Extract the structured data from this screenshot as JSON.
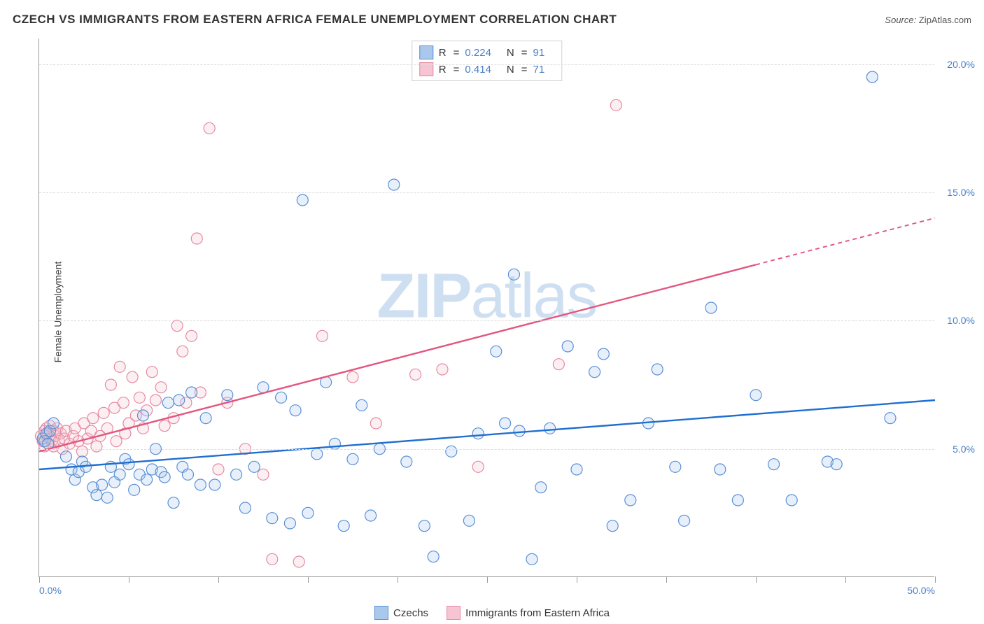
{
  "title": "CZECH VS IMMIGRANTS FROM EASTERN AFRICA FEMALE UNEMPLOYMENT CORRELATION CHART",
  "source_label": "Source:",
  "source_value": "ZipAtlas.com",
  "watermark": {
    "bold": "ZIP",
    "rest": "atlas"
  },
  "y_axis_label": "Female Unemployment",
  "chart": {
    "type": "scatter",
    "xlim": [
      0,
      50
    ],
    "ylim": [
      0,
      21
    ],
    "x_ticks": [
      0,
      5,
      10,
      15,
      20,
      25,
      30,
      35,
      40,
      45,
      50
    ],
    "x_tick_labels": {
      "0": "0.0%",
      "50": "50.0%"
    },
    "y_ticks": [
      5,
      10,
      15,
      20
    ],
    "y_tick_labels": [
      "5.0%",
      "10.0%",
      "15.0%",
      "20.0%"
    ],
    "grid_color": "#dddddd",
    "axis_color": "#999999",
    "background_color": "#ffffff",
    "marker_radius": 8,
    "marker_stroke_width": 1.2,
    "marker_fill_opacity": 0.28,
    "line_width": 2.4,
    "series": [
      {
        "key": "czechs",
        "label": "Czechs",
        "color_stroke": "#5a8fd6",
        "color_fill": "#a9c8ec",
        "line_color": "#1f6fd0",
        "r": 0.224,
        "n": 91,
        "trend": {
          "x1": 0,
          "y1": 4.2,
          "x2": 50,
          "y2": 6.9
        },
        "points": [
          [
            0.2,
            5.4
          ],
          [
            0.3,
            5.3
          ],
          [
            0.4,
            5.6
          ],
          [
            0.5,
            5.2
          ],
          [
            0.6,
            5.7
          ],
          [
            0.8,
            6.0
          ],
          [
            1.5,
            4.7
          ],
          [
            1.8,
            4.2
          ],
          [
            2.0,
            3.8
          ],
          [
            2.2,
            4.1
          ],
          [
            2.4,
            4.5
          ],
          [
            2.6,
            4.3
          ],
          [
            3.0,
            3.5
          ],
          [
            3.2,
            3.2
          ],
          [
            3.5,
            3.6
          ],
          [
            3.8,
            3.1
          ],
          [
            4.0,
            4.3
          ],
          [
            4.2,
            3.7
          ],
          [
            4.5,
            4.0
          ],
          [
            4.8,
            4.6
          ],
          [
            5.0,
            4.4
          ],
          [
            5.3,
            3.4
          ],
          [
            5.6,
            4.0
          ],
          [
            5.8,
            6.3
          ],
          [
            6.0,
            3.8
          ],
          [
            6.3,
            4.2
          ],
          [
            6.5,
            5.0
          ],
          [
            6.8,
            4.1
          ],
          [
            7.0,
            3.9
          ],
          [
            7.2,
            6.8
          ],
          [
            7.5,
            2.9
          ],
          [
            7.8,
            6.9
          ],
          [
            8.0,
            4.3
          ],
          [
            8.3,
            4.0
          ],
          [
            8.5,
            7.2
          ],
          [
            9.0,
            3.6
          ],
          [
            9.3,
            6.2
          ],
          [
            9.8,
            3.6
          ],
          [
            10.5,
            7.1
          ],
          [
            11.0,
            4.0
          ],
          [
            11.5,
            2.7
          ],
          [
            12.0,
            4.3
          ],
          [
            12.5,
            7.4
          ],
          [
            13.0,
            2.3
          ],
          [
            13.5,
            7.0
          ],
          [
            14.0,
            2.1
          ],
          [
            14.3,
            6.5
          ],
          [
            14.7,
            14.7
          ],
          [
            15.0,
            2.5
          ],
          [
            15.5,
            4.8
          ],
          [
            16.0,
            7.6
          ],
          [
            16.5,
            5.2
          ],
          [
            17.0,
            2.0
          ],
          [
            17.5,
            4.6
          ],
          [
            18.0,
            6.7
          ],
          [
            18.5,
            2.4
          ],
          [
            19.0,
            5.0
          ],
          [
            19.8,
            15.3
          ],
          [
            20.5,
            4.5
          ],
          [
            21.5,
            2.0
          ],
          [
            22.0,
            0.8
          ],
          [
            23.0,
            4.9
          ],
          [
            24.0,
            2.2
          ],
          [
            24.5,
            5.6
          ],
          [
            25.5,
            8.8
          ],
          [
            26.0,
            6.0
          ],
          [
            26.5,
            11.8
          ],
          [
            26.8,
            5.7
          ],
          [
            27.5,
            0.7
          ],
          [
            28.0,
            3.5
          ],
          [
            28.5,
            5.8
          ],
          [
            29.5,
            9.0
          ],
          [
            30.0,
            4.2
          ],
          [
            31.0,
            8.0
          ],
          [
            31.5,
            8.7
          ],
          [
            32.0,
            2.0
          ],
          [
            33.0,
            3.0
          ],
          [
            34.0,
            6.0
          ],
          [
            34.5,
            8.1
          ],
          [
            35.5,
            4.3
          ],
          [
            36.0,
            2.2
          ],
          [
            37.5,
            10.5
          ],
          [
            38.0,
            4.2
          ],
          [
            39.0,
            3.0
          ],
          [
            40.0,
            7.1
          ],
          [
            41.0,
            4.4
          ],
          [
            42.0,
            3.0
          ],
          [
            44.0,
            4.5
          ],
          [
            44.5,
            4.4
          ],
          [
            46.5,
            19.5
          ],
          [
            47.5,
            6.2
          ]
        ]
      },
      {
        "key": "immigrants",
        "label": "Immigrants from Eastern Africa",
        "color_stroke": "#e68aa3",
        "color_fill": "#f6c4d2",
        "line_color": "#e2567f",
        "r": 0.414,
        "n": 71,
        "trend": {
          "x1": 0,
          "y1": 4.9,
          "x2": 50,
          "y2": 14.0
        },
        "trend_solid_until_x": 40,
        "points": [
          [
            0.1,
            5.5
          ],
          [
            0.2,
            5.3
          ],
          [
            0.3,
            5.7
          ],
          [
            0.3,
            5.1
          ],
          [
            0.4,
            5.5
          ],
          [
            0.4,
            5.8
          ],
          [
            0.5,
            5.2
          ],
          [
            0.5,
            5.6
          ],
          [
            0.6,
            5.4
          ],
          [
            0.6,
            5.9
          ],
          [
            0.7,
            5.3
          ],
          [
            0.8,
            5.7
          ],
          [
            0.8,
            5.1
          ],
          [
            0.9,
            5.5
          ],
          [
            1.0,
            5.8
          ],
          [
            1.1,
            5.3
          ],
          [
            1.2,
            5.6
          ],
          [
            1.3,
            5.0
          ],
          [
            1.4,
            5.4
          ],
          [
            1.5,
            5.7
          ],
          [
            1.7,
            5.2
          ],
          [
            1.9,
            5.5
          ],
          [
            2.0,
            5.8
          ],
          [
            2.2,
            5.3
          ],
          [
            2.4,
            4.9
          ],
          [
            2.5,
            6.0
          ],
          [
            2.7,
            5.4
          ],
          [
            2.9,
            5.7
          ],
          [
            3.0,
            6.2
          ],
          [
            3.2,
            5.1
          ],
          [
            3.4,
            5.5
          ],
          [
            3.6,
            6.4
          ],
          [
            3.8,
            5.8
          ],
          [
            4.0,
            7.5
          ],
          [
            4.2,
            6.6
          ],
          [
            4.3,
            5.3
          ],
          [
            4.5,
            8.2
          ],
          [
            4.7,
            6.8
          ],
          [
            4.8,
            5.6
          ],
          [
            5.0,
            6.0
          ],
          [
            5.2,
            7.8
          ],
          [
            5.4,
            6.3
          ],
          [
            5.6,
            7.0
          ],
          [
            5.8,
            5.8
          ],
          [
            6.0,
            6.5
          ],
          [
            6.3,
            8.0
          ],
          [
            6.5,
            6.9
          ],
          [
            6.8,
            7.4
          ],
          [
            7.0,
            5.9
          ],
          [
            7.5,
            6.2
          ],
          [
            7.7,
            9.8
          ],
          [
            8.0,
            8.8
          ],
          [
            8.2,
            6.8
          ],
          [
            8.5,
            9.4
          ],
          [
            8.8,
            13.2
          ],
          [
            9.0,
            7.2
          ],
          [
            9.5,
            17.5
          ],
          [
            10.0,
            4.2
          ],
          [
            10.5,
            6.8
          ],
          [
            11.5,
            5.0
          ],
          [
            12.5,
            4.0
          ],
          [
            13.0,
            0.7
          ],
          [
            14.5,
            0.6
          ],
          [
            15.8,
            9.4
          ],
          [
            17.5,
            7.8
          ],
          [
            18.8,
            6.0
          ],
          [
            21.0,
            7.9
          ],
          [
            22.5,
            8.1
          ],
          [
            24.5,
            4.3
          ],
          [
            29.0,
            8.3
          ],
          [
            32.2,
            18.4
          ]
        ]
      }
    ]
  },
  "tick_label_color": "#4a7fc7"
}
